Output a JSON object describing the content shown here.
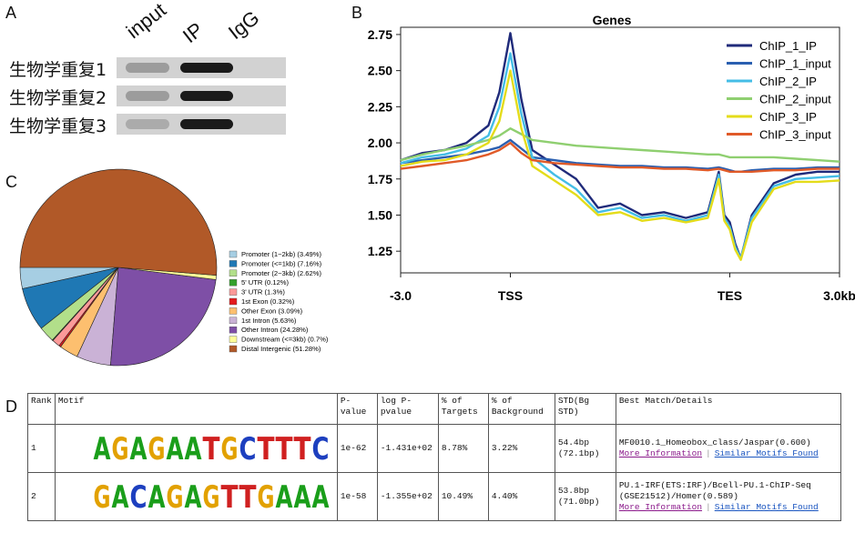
{
  "panels": {
    "a": "A",
    "b": "B",
    "c": "C",
    "d": "D"
  },
  "panelA": {
    "lanes": [
      "input",
      "IP",
      "IgG"
    ],
    "replicates": [
      "生物学重复1",
      "生物学重复2",
      "生物学重复3"
    ]
  },
  "panelB": {
    "chart_data": {
      "type": "line",
      "title": "Genes",
      "ylim": [
        1.1,
        2.8
      ],
      "yticks": [
        1.25,
        1.5,
        1.75,
        2.0,
        2.25,
        2.5,
        2.75
      ],
      "ytick_labels": [
        "1.25",
        "1.50",
        "1.75",
        "2.00",
        "2.25",
        "2.50",
        "2.75"
      ],
      "xticks": [
        0,
        1,
        3,
        4
      ],
      "xtick_labels": [
        "-3.0",
        "TSS",
        "TES",
        "3.0kb"
      ],
      "xlim": [
        0,
        4
      ],
      "legend_position": "top-right",
      "x": [
        0,
        0.2,
        0.4,
        0.6,
        0.8,
        0.9,
        1.0,
        1.1,
        1.2,
        1.4,
        1.6,
        1.8,
        2.0,
        2.2,
        2.4,
        2.6,
        2.8,
        2.9,
        2.95,
        3.0,
        3.05,
        3.1,
        3.2,
        3.4,
        3.6,
        3.8,
        4.0
      ],
      "series": [
        {
          "name": "ChIP_1_IP",
          "color": "#1f2a7a",
          "values": [
            1.88,
            1.93,
            1.95,
            2.0,
            2.12,
            2.35,
            2.76,
            2.3,
            1.95,
            1.85,
            1.75,
            1.55,
            1.58,
            1.5,
            1.52,
            1.48,
            1.52,
            1.8,
            1.5,
            1.45,
            1.3,
            1.2,
            1.5,
            1.72,
            1.78,
            1.8,
            1.8
          ]
        },
        {
          "name": "ChIP_1_input",
          "color": "#2a5fb0",
          "values": [
            1.86,
            1.88,
            1.9,
            1.92,
            1.95,
            1.97,
            2.02,
            1.96,
            1.9,
            1.88,
            1.86,
            1.85,
            1.84,
            1.84,
            1.83,
            1.83,
            1.82,
            1.83,
            1.82,
            1.81,
            1.8,
            1.8,
            1.81,
            1.82,
            1.82,
            1.83,
            1.83
          ]
        },
        {
          "name": "ChIP_2_IP",
          "color": "#44bde6",
          "values": [
            1.86,
            1.9,
            1.92,
            1.96,
            2.05,
            2.25,
            2.62,
            2.2,
            1.9,
            1.78,
            1.68,
            1.52,
            1.55,
            1.48,
            1.5,
            1.46,
            1.5,
            1.78,
            1.48,
            1.42,
            1.28,
            1.2,
            1.48,
            1.7,
            1.75,
            1.76,
            1.77
          ]
        },
        {
          "name": "ChIP_2_input",
          "color": "#8fcf70",
          "values": [
            1.88,
            1.92,
            1.95,
            1.98,
            2.02,
            2.05,
            2.1,
            2.06,
            2.02,
            2.0,
            1.98,
            1.97,
            1.96,
            1.95,
            1.94,
            1.93,
            1.92,
            1.92,
            1.91,
            1.9,
            1.9,
            1.9,
            1.9,
            1.9,
            1.89,
            1.88,
            1.87
          ]
        },
        {
          "name": "ChIP_3_IP",
          "color": "#e4dc1a",
          "values": [
            1.84,
            1.87,
            1.88,
            1.92,
            2.0,
            2.15,
            2.5,
            2.1,
            1.84,
            1.74,
            1.64,
            1.5,
            1.52,
            1.46,
            1.48,
            1.45,
            1.48,
            1.75,
            1.46,
            1.4,
            1.26,
            1.19,
            1.45,
            1.68,
            1.73,
            1.73,
            1.74
          ]
        },
        {
          "name": "ChIP_3_input",
          "color": "#e05a28",
          "values": [
            1.82,
            1.84,
            1.86,
            1.88,
            1.92,
            1.95,
            2.0,
            1.93,
            1.88,
            1.86,
            1.85,
            1.84,
            1.83,
            1.83,
            1.82,
            1.82,
            1.81,
            1.82,
            1.81,
            1.8,
            1.8,
            1.8,
            1.8,
            1.81,
            1.81,
            1.82,
            1.82
          ]
        }
      ]
    }
  },
  "panelC": {
    "chart_data": {
      "type": "pie",
      "legend_position": "right",
      "slices": [
        {
          "label": "Promoter (1−2kb) (3.49%)",
          "value": 3.49,
          "color": "#a6cee3"
        },
        {
          "label": "Promoter (<=1kb) (7.16%)",
          "value": 7.16,
          "color": "#1f78b4"
        },
        {
          "label": "Promoter (2−3kb) (2.62%)",
          "value": 2.62,
          "color": "#b2df8a"
        },
        {
          "label": "5' UTR (0.12%)",
          "value": 0.12,
          "color": "#33a02c"
        },
        {
          "label": "3' UTR (1.3%)",
          "value": 1.3,
          "color": "#fb9a99"
        },
        {
          "label": "1st Exon (0.32%)",
          "value": 0.32,
          "color": "#e31a1c"
        },
        {
          "label": "Other Exon (3.09%)",
          "value": 3.09,
          "color": "#fdbf6f"
        },
        {
          "label": "1st Intron (5.63%)",
          "value": 5.63,
          "color": "#cab2d6"
        },
        {
          "label": "Other Intron (24.28%)",
          "value": 24.28,
          "color": "#7e4fa6"
        },
        {
          "label": "Downstream (<=3kb) (0.7%)",
          "value": 0.7,
          "color": "#ffff99"
        },
        {
          "label": "Distal Intergenic (51.28%)",
          "value": 51.28,
          "color": "#b15928"
        }
      ]
    }
  },
  "panelD": {
    "headers": [
      "Rank",
      "Motif",
      "P-value",
      "log P-pvalue",
      "% of Targets",
      "% of Background",
      "STD(Bg STD)",
      "Best Match/Details"
    ],
    "rows": [
      {
        "rank": "1",
        "motif": "AGAGAATGCTTTC",
        "pvalue": "1e-62",
        "log_pvalue": "-1.431e+02",
        "targets": "8.78%",
        "background": "3.22%",
        "std": "54.4bp (72.1bp)",
        "match": "MF0010.1_Homeobox_class/Jaspar(0.600)",
        "link1": "More Information",
        "link2": "Similar Motifs Found"
      },
      {
        "rank": "2",
        "motif": "GACAGAGTTGAAA",
        "pvalue": "1e-58",
        "log_pvalue": "-1.355e+02",
        "targets": "10.49%",
        "background": "4.40%",
        "std": "53.8bp (71.0bp)",
        "match": "PU.1-IRF(ETS:IRF)/Bcell-PU.1-ChIP-Seq (GSE21512)/Homer(0.589)",
        "link1": "More Information",
        "link2": "Similar Motifs Found"
      }
    ],
    "base_colors": {
      "A": "#1a9e1a",
      "C": "#1d3fbf",
      "G": "#e2a100",
      "T": "#d02020"
    }
  }
}
